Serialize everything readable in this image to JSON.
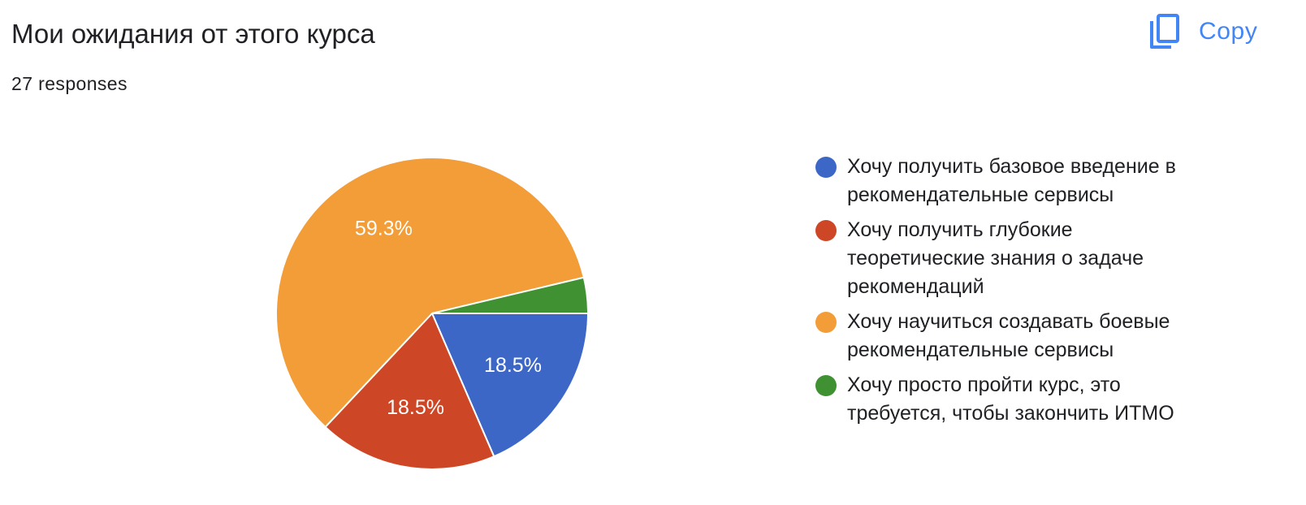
{
  "header": {
    "title": "Мои ожидания от этого курса",
    "responses": "27 responses",
    "copy_label": "Copy",
    "copy_icon": "copy-icon"
  },
  "colors": {
    "accent": "#4285f4",
    "text": "#202124"
  },
  "chart_data": {
    "type": "pie",
    "title": "Мои ожидания от этого курса",
    "legend_position": "right",
    "slices": [
      {
        "label": "Хочу получить базовое введение в рекомендательные сервисы",
        "value": 18.5,
        "display": "18.5%",
        "color": "#3d67c7"
      },
      {
        "label": "Хочу получить глубокие теоретические знания о задаче рекомендаций",
        "value": 18.5,
        "display": "18.5%",
        "color": "#cd4626"
      },
      {
        "label": "Хочу научиться создавать боевые рекомендательные сервисы",
        "value": 59.3,
        "display": "59.3%",
        "color": "#f29d37"
      },
      {
        "label": "Хочу просто пройти курс, это требуется, чтобы закончить ИТМО",
        "value": 3.7,
        "display": "",
        "color": "#3f9131"
      }
    ]
  }
}
